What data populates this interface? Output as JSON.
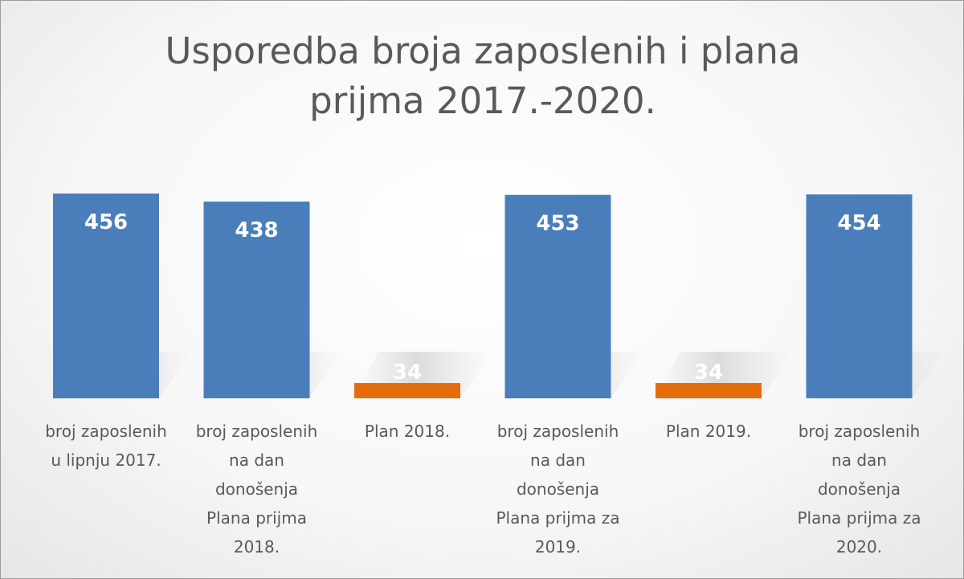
{
  "chart_data": {
    "type": "bar",
    "title_lines": [
      "Usporedba broja zaposlenih i plana",
      "prijma 2017.-2020."
    ],
    "categories": [
      [
        "broj zaposlenih",
        "u lipnju 2017."
      ],
      [
        "broj zaposlenih",
        "na dan",
        "donošenja",
        "Plana prijma",
        "2018."
      ],
      [
        "Plan 2018."
      ],
      [
        "broj zaposlenih",
        "na dan",
        "donošenja",
        "Plana prijma za",
        "2019."
      ],
      [
        "Plan 2019."
      ],
      [
        "broj zaposlenih",
        "na dan",
        "donošenja",
        "Plana prijma za",
        "2020."
      ]
    ],
    "values": [
      456,
      438,
      34,
      453,
      34,
      454
    ],
    "value_labels": [
      "456",
      "438",
      "34",
      "453",
      "34",
      "454"
    ],
    "colors": [
      "#4a7ebb",
      "#4a7ebb",
      "#e46c0a",
      "#4a7ebb",
      "#e46c0a",
      "#4a7ebb"
    ],
    "ylim": [
      0,
      456
    ],
    "grid": false,
    "legend": "none"
  }
}
